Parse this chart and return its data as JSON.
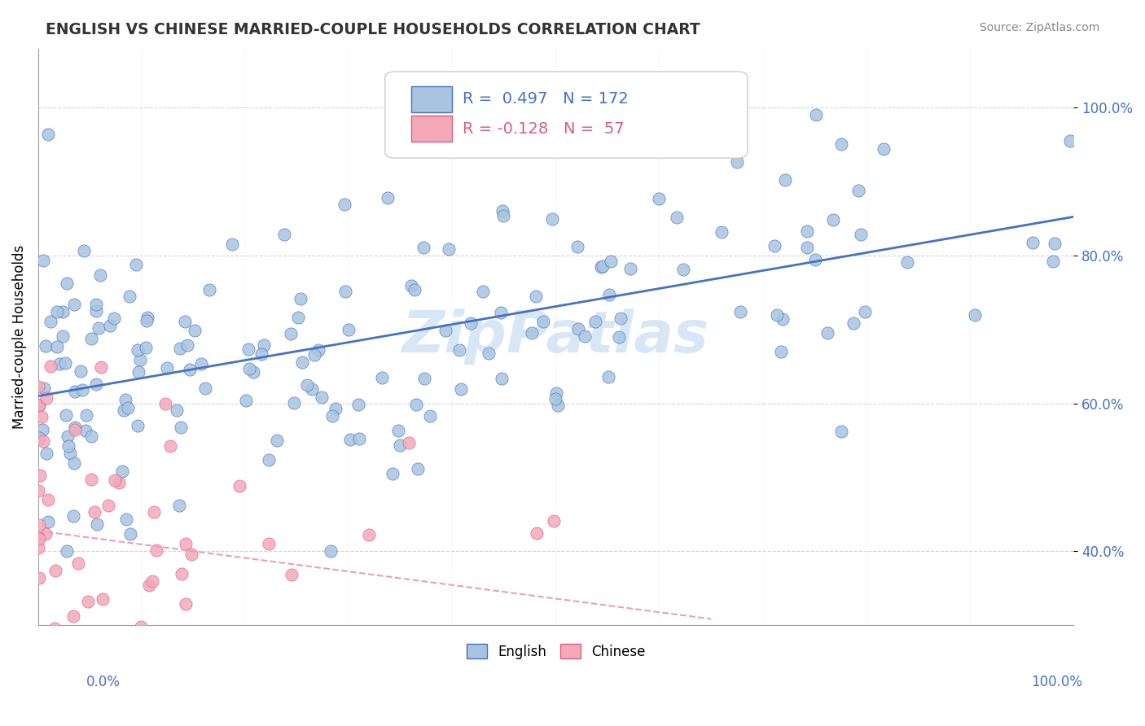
{
  "title": "ENGLISH VS CHINESE MARRIED-COUPLE HOUSEHOLDS CORRELATION CHART",
  "source": "Source: ZipAtlas.com",
  "ylabel": "Married-couple Households",
  "english_color": "#a8c4e0",
  "chinese_color": "#f4a8b8",
  "english_line_color": "#4472c4",
  "chinese_line_color": "#e8a0b8",
  "chinese_edge_color": "#d4608a",
  "watermark": "ZipPatlas",
  "english_R": 0.497,
  "english_N": 172,
  "chinese_R": -0.128,
  "chinese_N": 57,
  "ytick_labels": [
    "40.0%",
    "60.0%",
    "80.0%",
    "100.0%"
  ],
  "ytick_vals": [
    0.4,
    0.6,
    0.8,
    1.0
  ]
}
